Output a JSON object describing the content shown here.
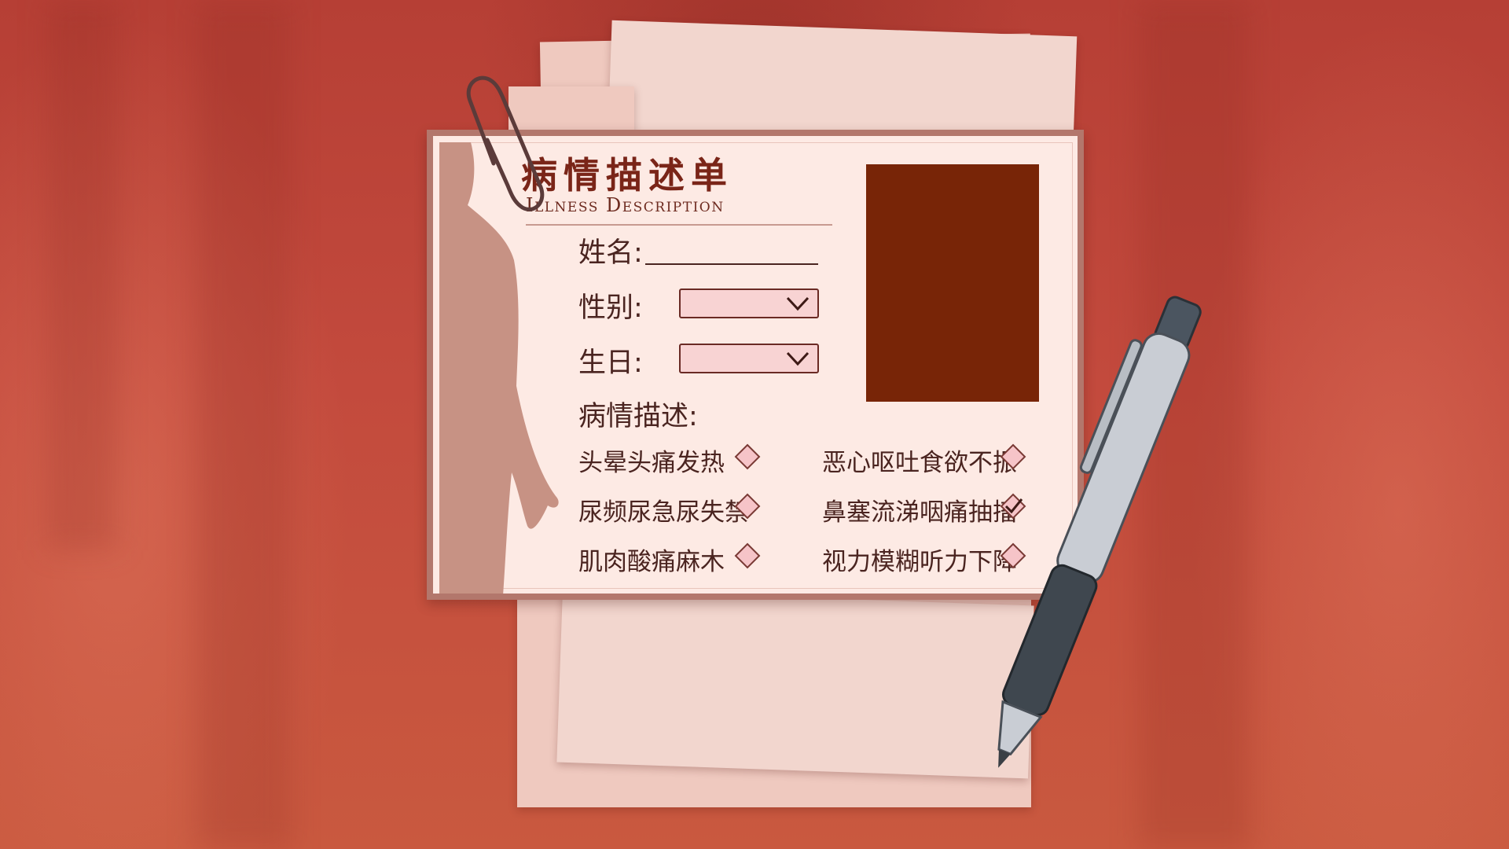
{
  "form": {
    "title_cn": "病情描述单",
    "title_en": "Illness Description",
    "name_label": "姓名:",
    "gender_label": "性别:",
    "birthday_label": "生日:",
    "desc_label": "病情描述:",
    "gender_value": "",
    "birthday_value": ""
  },
  "symptoms": [
    {
      "label": "头晕头痛发热",
      "checked": false
    },
    {
      "label": "恶心呕吐食欲不振",
      "checked": false
    },
    {
      "label": "尿频尿急尿失禁",
      "checked": false
    },
    {
      "label": "鼻塞流涕咽痛抽搐",
      "checked": true
    },
    {
      "label": "肌肉酸痛麻木",
      "checked": false
    },
    {
      "label": "视力模糊听力下降",
      "checked": false
    }
  ],
  "colors": {
    "background": "#c04a3c",
    "card": "#fdeae4",
    "photo": "#782507",
    "select_fill": "#f8d3d3",
    "title": "#7a2518"
  },
  "icons": {
    "paperclip": "paperclip-icon",
    "pen": "pen-icon",
    "chevron": "chevron-down-icon",
    "checkbox": "diamond-checkbox-icon"
  }
}
